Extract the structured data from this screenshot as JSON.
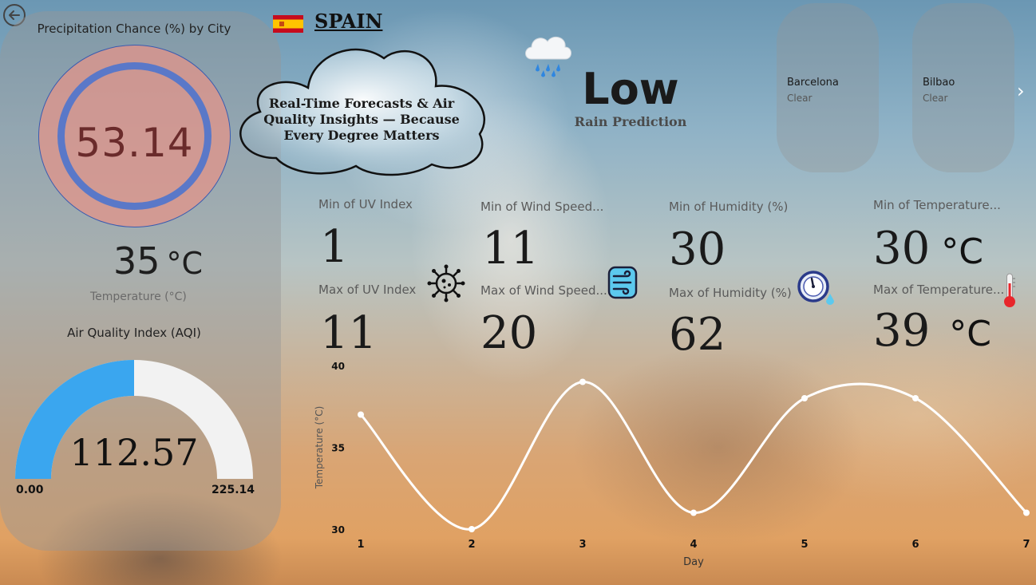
{
  "header": {
    "country": "SPAIN",
    "flag_icon": "spain-flag-icon"
  },
  "tagline": "Real-Time Forecasts & Air Quality Insights — Because Every Degree Matters",
  "precipitation": {
    "title": "Precipitation Chance (%) by City",
    "value": "53.14",
    "fill_percent": 53.14,
    "ring_color": "#5a78c8",
    "fill_color": "#e3948a"
  },
  "temperature": {
    "value": "35",
    "unit": "°C",
    "label": "Temperature (°C)"
  },
  "aqi": {
    "title": "Air Quality Index (AQI)",
    "value": "112.57",
    "min": "0.00",
    "max": "225.14",
    "fill_fraction": 0.5,
    "fill_color": "#3aa6ef",
    "track_color": "#f2f2f2"
  },
  "rain": {
    "value": "Low",
    "label": "Rain Prediction",
    "icon": "rain-cloud-icon"
  },
  "cities": [
    {
      "name": "Barcelona",
      "condition": "Clear"
    },
    {
      "name": "Bilbao",
      "condition": "Clear"
    }
  ],
  "kpis": {
    "uv_min": {
      "label": "Min of UV Index",
      "value": "1"
    },
    "uv_max": {
      "label": "Max of UV Index",
      "value": "11"
    },
    "wind_min": {
      "label": "Min of Wind Speed...",
      "value": "11"
    },
    "wind_max": {
      "label": "Max of Wind Speed...",
      "value": "20"
    },
    "hum_min": {
      "label": "Min of Humidity (%)",
      "value": "30"
    },
    "hum_max": {
      "label": "Max of Humidity (%)",
      "value": "62"
    },
    "temp_min": {
      "label": "Min of Temperature...",
      "value": "30",
      "unit": "°C"
    },
    "temp_max": {
      "label": "Max of Temperature...",
      "value": "39",
      "unit": "°C"
    }
  },
  "chart_data": {
    "type": "line",
    "x": [
      1,
      2,
      3,
      4,
      5,
      6,
      7
    ],
    "series": [
      {
        "values": [
          37,
          30,
          39,
          31,
          38,
          38,
          31
        ]
      }
    ],
    "xlabel": "Day",
    "ylabel": "Temperature (°C)",
    "ylim": [
      30,
      40
    ],
    "yticks": [
      30,
      35,
      40
    ],
    "line_color": "#ffffff",
    "grid": false
  }
}
